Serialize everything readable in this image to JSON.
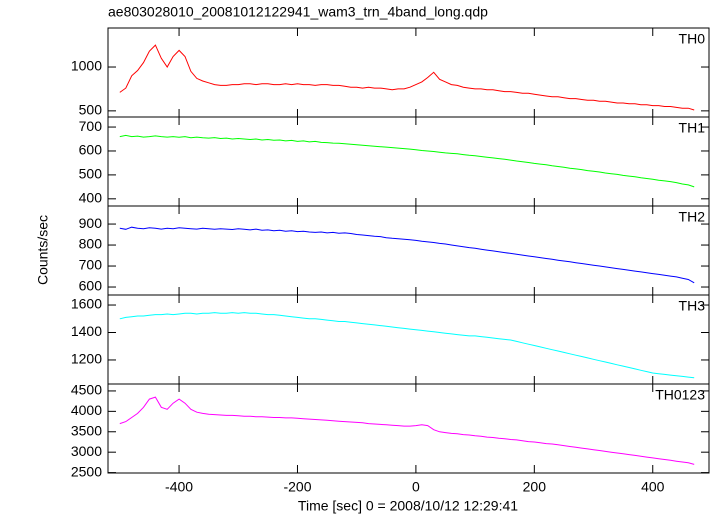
{
  "chart_data": {
    "type": "line",
    "title": "ae803028010_20081012122941_wam3_trn_4band_long.qdp",
    "xlabel": "Time [sec] 0 = 2008/10/12 12:29:41",
    "ylabel": "Counts/sec",
    "xlim": [
      -520,
      495
    ],
    "xticks": [
      -400,
      -200,
      0,
      200,
      400
    ],
    "x": [
      -500,
      -490,
      -480,
      -470,
      -460,
      -450,
      -440,
      -430,
      -420,
      -410,
      -400,
      -390,
      -380,
      -370,
      -360,
      -350,
      -340,
      -330,
      -320,
      -310,
      -300,
      -290,
      -280,
      -270,
      -260,
      -250,
      -240,
      -230,
      -220,
      -210,
      -200,
      -190,
      -180,
      -170,
      -160,
      -150,
      -140,
      -130,
      -120,
      -110,
      -100,
      -90,
      -80,
      -70,
      -60,
      -50,
      -40,
      -30,
      -20,
      -10,
      0,
      10,
      20,
      30,
      40,
      50,
      60,
      70,
      80,
      90,
      100,
      110,
      120,
      130,
      140,
      150,
      160,
      170,
      180,
      190,
      200,
      210,
      220,
      230,
      240,
      250,
      260,
      270,
      280,
      290,
      300,
      310,
      320,
      330,
      340,
      350,
      360,
      370,
      380,
      390,
      400,
      410,
      420,
      430,
      440,
      450,
      460,
      470
    ],
    "panels": [
      {
        "name": "TH0",
        "color": "#ff0000",
        "ylim": [
          430,
          1445
        ],
        "yticks": [
          500,
          1000
        ],
        "values": [
          710,
          760,
          900,
          960,
          1050,
          1180,
          1250,
          1100,
          1000,
          1120,
          1190,
          1120,
          950,
          870,
          840,
          820,
          800,
          790,
          790,
          800,
          800,
          810,
          810,
          800,
          810,
          810,
          800,
          800,
          810,
          800,
          810,
          800,
          800,
          790,
          800,
          800,
          790,
          790,
          780,
          770,
          770,
          760,
          770,
          760,
          760,
          750,
          740,
          750,
          750,
          770,
          800,
          830,
          880,
          940,
          860,
          830,
          800,
          790,
          770,
          760,
          750,
          750,
          740,
          740,
          730,
          720,
          720,
          710,
          700,
          700,
          690,
          680,
          670,
          660,
          660,
          650,
          640,
          640,
          630,
          620,
          620,
          610,
          610,
          600,
          590,
          590,
          580,
          580,
          570,
          570,
          560,
          560,
          550,
          550,
          540,
          530,
          530,
          510
        ]
      },
      {
        "name": "TH1",
        "color": "#00ff00",
        "ylim": [
          370,
          742
        ],
        "yticks": [
          400,
          500,
          600,
          700
        ],
        "values": [
          660,
          665,
          660,
          662,
          658,
          660,
          663,
          660,
          658,
          660,
          657,
          660,
          655,
          658,
          655,
          654,
          656,
          652,
          654,
          650,
          652,
          650,
          648,
          650,
          646,
          648,
          645,
          646,
          642,
          644,
          640,
          642,
          638,
          640,
          636,
          635,
          633,
          632,
          630,
          628,
          626,
          624,
          622,
          620,
          618,
          616,
          614,
          612,
          610,
          608,
          605,
          602,
          600,
          598,
          595,
          592,
          590,
          588,
          585,
          582,
          580,
          577,
          574,
          571,
          568,
          565,
          562,
          558,
          555,
          552,
          548,
          545,
          542,
          538,
          535,
          532,
          528,
          525,
          522,
          518,
          515,
          512,
          508,
          505,
          502,
          498,
          495,
          492,
          488,
          485,
          482,
          478,
          475,
          472,
          468,
          462,
          458,
          450
        ]
      },
      {
        "name": "TH2",
        "color": "#0000ff",
        "ylim": [
          562,
          986
        ],
        "yticks": [
          600,
          700,
          800,
          900
        ],
        "values": [
          880,
          875,
          885,
          880,
          878,
          882,
          880,
          876,
          880,
          878,
          882,
          880,
          878,
          876,
          880,
          878,
          875,
          878,
          876,
          874,
          878,
          875,
          872,
          876,
          870,
          872,
          868,
          870,
          866,
          868,
          864,
          866,
          862,
          860,
          862,
          858,
          860,
          856,
          858,
          855,
          850,
          848,
          845,
          842,
          840,
          835,
          832,
          830,
          828,
          825,
          822,
          818,
          815,
          812,
          808,
          805,
          800,
          796,
          792,
          788,
          785,
          780,
          776,
          772,
          768,
          764,
          760,
          756,
          752,
          748,
          744,
          740,
          736,
          732,
          728,
          724,
          720,
          716,
          712,
          708,
          704,
          700,
          696,
          692,
          688,
          684,
          680,
          676,
          672,
          668,
          664,
          660,
          656,
          652,
          648,
          642,
          636,
          620
        ]
      },
      {
        "name": "TH3",
        "color": "#00ffff",
        "ylim": [
          1025,
          1673
        ],
        "yticks": [
          1200,
          1400,
          1600
        ],
        "values": [
          1500,
          1510,
          1515,
          1520,
          1520,
          1525,
          1530,
          1530,
          1535,
          1530,
          1535,
          1540,
          1540,
          1535,
          1540,
          1540,
          1545,
          1540,
          1540,
          1545,
          1540,
          1545,
          1540,
          1540,
          1535,
          1530,
          1530,
          1525,
          1520,
          1515,
          1510,
          1505,
          1500,
          1500,
          1495,
          1490,
          1485,
          1480,
          1480,
          1475,
          1470,
          1465,
          1460,
          1455,
          1450,
          1445,
          1440,
          1435,
          1430,
          1425,
          1420,
          1415,
          1410,
          1405,
          1400,
          1395,
          1390,
          1385,
          1380,
          1375,
          1375,
          1370,
          1365,
          1360,
          1355,
          1350,
          1345,
          1335,
          1325,
          1315,
          1305,
          1295,
          1285,
          1275,
          1265,
          1255,
          1245,
          1235,
          1225,
          1215,
          1205,
          1195,
          1185,
          1175,
          1165,
          1155,
          1145,
          1135,
          1125,
          1115,
          1105,
          1100,
          1095,
          1090,
          1085,
          1080,
          1075,
          1070
        ]
      },
      {
        "name": "TH0123",
        "color": "#ff00ff",
        "ylim": [
          2490,
          4670
        ],
        "yticks": [
          2500,
          3000,
          3500,
          4000,
          4500
        ],
        "values": [
          3700,
          3750,
          3850,
          3950,
          4100,
          4300,
          4350,
          4100,
          4050,
          4200,
          4300,
          4200,
          4050,
          3980,
          3950,
          3930,
          3920,
          3910,
          3900,
          3900,
          3890,
          3880,
          3880,
          3870,
          3870,
          3860,
          3850,
          3850,
          3840,
          3840,
          3830,
          3820,
          3810,
          3800,
          3790,
          3780,
          3770,
          3760,
          3750,
          3740,
          3730,
          3720,
          3700,
          3690,
          3680,
          3670,
          3660,
          3650,
          3640,
          3640,
          3650,
          3670,
          3650,
          3550,
          3500,
          3480,
          3460,
          3450,
          3430,
          3420,
          3400,
          3390,
          3370,
          3360,
          3340,
          3330,
          3310,
          3300,
          3280,
          3260,
          3250,
          3230,
          3210,
          3200,
          3180,
          3160,
          3140,
          3120,
          3100,
          3080,
          3060,
          3040,
          3020,
          3000,
          2980,
          2960,
          2940,
          2920,
          2900,
          2880,
          2860,
          2840,
          2820,
          2800,
          2780,
          2760,
          2740,
          2700
        ]
      }
    ]
  }
}
